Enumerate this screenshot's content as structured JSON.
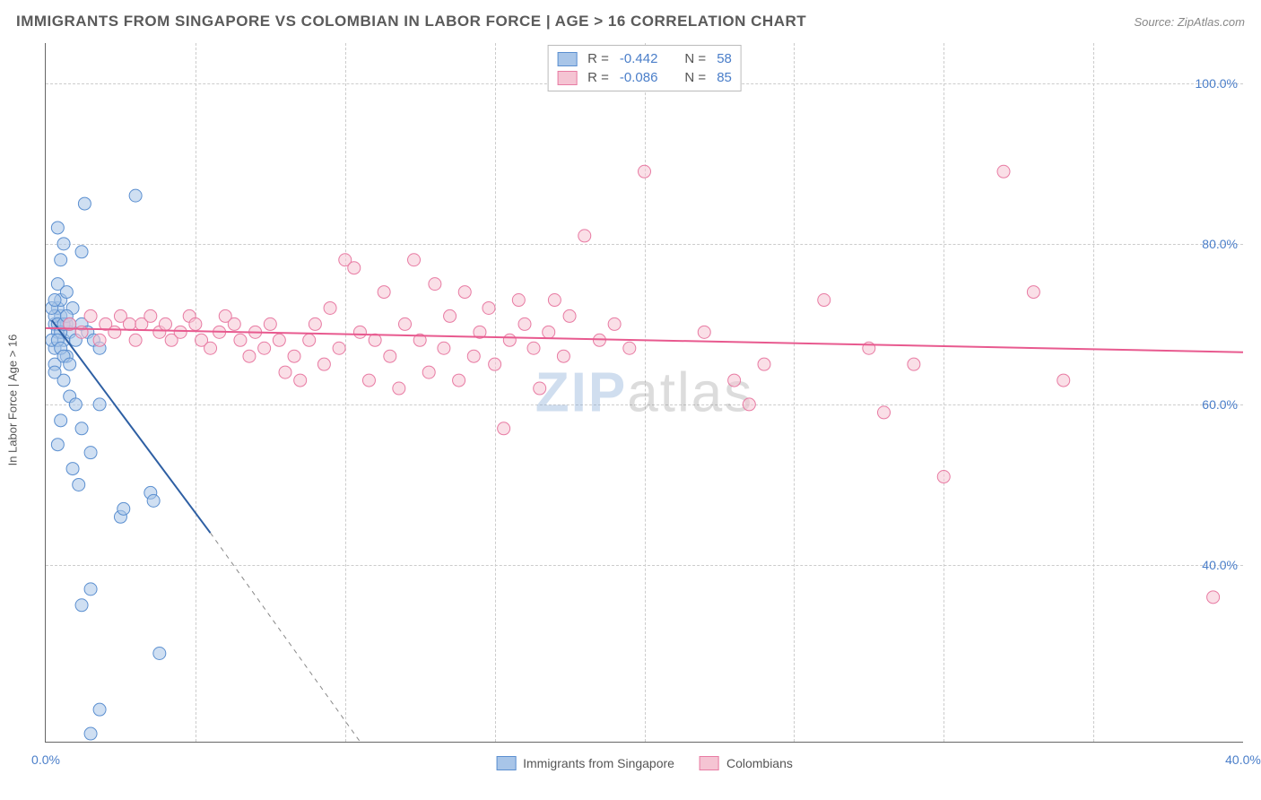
{
  "title": "IMMIGRANTS FROM SINGAPORE VS COLOMBIAN IN LABOR FORCE | AGE > 16 CORRELATION CHART",
  "source_label": "Source: ",
  "source_name": "ZipAtlas.com",
  "ylabel": "In Labor Force | Age > 16",
  "watermark_zip": "ZIP",
  "watermark_atlas": "atlas",
  "chart": {
    "type": "scatter",
    "xlim": [
      0.0,
      40.0
    ],
    "ylim": [
      18.0,
      105.0
    ],
    "yticks": [
      40.0,
      60.0,
      80.0,
      100.0
    ],
    "ytick_labels": [
      "40.0%",
      "60.0%",
      "80.0%",
      "100.0%"
    ],
    "xticks": [
      0.0,
      40.0
    ],
    "xtick_labels": [
      "0.0%",
      "40.0%"
    ],
    "xgrid_minor": [
      5,
      10,
      15,
      20,
      25,
      30,
      35
    ],
    "background_color": "#ffffff",
    "grid_color": "#cccccc",
    "axis_color": "#666666",
    "tick_label_color": "#4a7ec9",
    "marker_radius": 7,
    "marker_opacity": 0.55,
    "line_width": 2
  },
  "series": [
    {
      "name": "Immigrants from Singapore",
      "legend_label": "Immigrants from Singapore",
      "color_fill": "#a8c5e8",
      "color_stroke": "#5b8fd0",
      "line_color": "#2e5fa3",
      "R_label": "R = ",
      "R_value": "-0.442",
      "N_label": "N = ",
      "N_value": "58",
      "trend": {
        "x1": 0.2,
        "y1": 70.5,
        "x2": 5.5,
        "y2": 44.0,
        "dash_to_x": 10.5,
        "dash_to_y": 18.0
      },
      "points": [
        [
          0.3,
          70
        ],
        [
          0.4,
          69
        ],
        [
          0.5,
          71
        ],
        [
          0.6,
          68
        ],
        [
          0.4,
          72
        ],
        [
          0.5,
          73
        ],
        [
          0.7,
          70
        ],
        [
          0.8,
          69
        ],
        [
          0.3,
          67
        ],
        [
          0.5,
          78
        ],
        [
          0.6,
          80
        ],
        [
          1.2,
          79
        ],
        [
          0.4,
          75
        ],
        [
          0.7,
          74
        ],
        [
          0.9,
          72
        ],
        [
          0.3,
          65
        ],
        [
          0.6,
          63
        ],
        [
          0.8,
          61
        ],
        [
          1.0,
          60
        ],
        [
          0.5,
          58
        ],
        [
          1.2,
          57
        ],
        [
          0.4,
          55
        ],
        [
          1.5,
          54
        ],
        [
          0.9,
          52
        ],
        [
          1.1,
          50
        ],
        [
          1.8,
          60
        ],
        [
          3.0,
          86
        ],
        [
          1.3,
          85
        ],
        [
          0.4,
          82
        ],
        [
          0.7,
          66
        ],
        [
          2.5,
          46
        ],
        [
          2.6,
          47
        ],
        [
          3.5,
          49
        ],
        [
          3.6,
          48
        ],
        [
          1.5,
          37
        ],
        [
          1.2,
          35
        ],
        [
          3.8,
          29
        ],
        [
          1.8,
          22
        ],
        [
          1.5,
          19
        ],
        [
          0.3,
          71
        ],
        [
          0.4,
          70
        ],
        [
          0.5,
          69
        ],
        [
          0.6,
          70
        ],
        [
          0.7,
          71
        ],
        [
          0.8,
          70
        ],
        [
          0.2,
          68
        ],
        [
          0.2,
          72
        ],
        [
          0.3,
          73
        ],
        [
          0.4,
          68
        ],
        [
          0.5,
          67
        ],
        [
          0.6,
          66
        ],
        [
          0.3,
          64
        ],
        [
          0.8,
          65
        ],
        [
          1.0,
          68
        ],
        [
          1.2,
          70
        ],
        [
          1.4,
          69
        ],
        [
          1.6,
          68
        ],
        [
          1.8,
          67
        ]
      ]
    },
    {
      "name": "Colombians",
      "legend_label": "Colombians",
      "color_fill": "#f5c4d3",
      "color_stroke": "#e87ba3",
      "line_color": "#e85a8f",
      "R_label": "R = ",
      "R_value": "-0.086",
      "N_label": "N = ",
      "N_value": "85",
      "trend": {
        "x1": 0.0,
        "y1": 69.5,
        "x2": 40.0,
        "y2": 66.5
      },
      "points": [
        [
          0.8,
          70
        ],
        [
          1.2,
          69
        ],
        [
          1.5,
          71
        ],
        [
          1.8,
          68
        ],
        [
          2.0,
          70
        ],
        [
          2.3,
          69
        ],
        [
          2.5,
          71
        ],
        [
          2.8,
          70
        ],
        [
          3.0,
          68
        ],
        [
          3.2,
          70
        ],
        [
          3.5,
          71
        ],
        [
          3.8,
          69
        ],
        [
          4.0,
          70
        ],
        [
          4.2,
          68
        ],
        [
          4.5,
          69
        ],
        [
          4.8,
          71
        ],
        [
          5.0,
          70
        ],
        [
          5.2,
          68
        ],
        [
          5.5,
          67
        ],
        [
          5.8,
          69
        ],
        [
          6.0,
          71
        ],
        [
          6.3,
          70
        ],
        [
          6.5,
          68
        ],
        [
          6.8,
          66
        ],
        [
          7.0,
          69
        ],
        [
          7.3,
          67
        ],
        [
          7.5,
          70
        ],
        [
          7.8,
          68
        ],
        [
          8.0,
          64
        ],
        [
          8.3,
          66
        ],
        [
          8.5,
          63
        ],
        [
          8.8,
          68
        ],
        [
          9.0,
          70
        ],
        [
          9.3,
          65
        ],
        [
          9.5,
          72
        ],
        [
          9.8,
          67
        ],
        [
          10.0,
          78
        ],
        [
          10.3,
          77
        ],
        [
          10.5,
          69
        ],
        [
          10.8,
          63
        ],
        [
          11.0,
          68
        ],
        [
          11.3,
          74
        ],
        [
          11.5,
          66
        ],
        [
          11.8,
          62
        ],
        [
          12.0,
          70
        ],
        [
          12.3,
          78
        ],
        [
          12.5,
          68
        ],
        [
          12.8,
          64
        ],
        [
          13.0,
          75
        ],
        [
          13.3,
          67
        ],
        [
          13.5,
          71
        ],
        [
          13.8,
          63
        ],
        [
          14.0,
          74
        ],
        [
          14.3,
          66
        ],
        [
          14.5,
          69
        ],
        [
          14.8,
          72
        ],
        [
          15.0,
          65
        ],
        [
          15.3,
          57
        ],
        [
          15.5,
          68
        ],
        [
          15.8,
          73
        ],
        [
          16.0,
          70
        ],
        [
          16.3,
          67
        ],
        [
          16.5,
          62
        ],
        [
          16.8,
          69
        ],
        [
          17.0,
          73
        ],
        [
          17.3,
          66
        ],
        [
          17.5,
          71
        ],
        [
          18.0,
          81
        ],
        [
          18.5,
          68
        ],
        [
          19.0,
          70
        ],
        [
          19.5,
          67
        ],
        [
          20.0,
          89
        ],
        [
          22.0,
          69
        ],
        [
          23.0,
          63
        ],
        [
          23.5,
          60
        ],
        [
          24.0,
          65
        ],
        [
          26.0,
          73
        ],
        [
          27.5,
          67
        ],
        [
          28.0,
          59
        ],
        [
          29.0,
          65
        ],
        [
          30.0,
          51
        ],
        [
          32.0,
          89
        ],
        [
          33.0,
          74
        ],
        [
          34.0,
          63
        ],
        [
          39.0,
          36
        ]
      ]
    }
  ]
}
